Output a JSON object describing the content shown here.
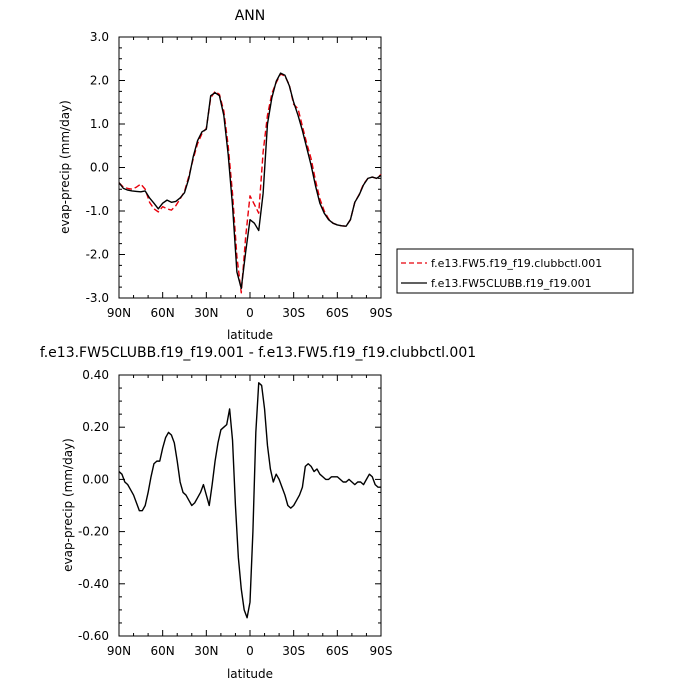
{
  "chart_data": [
    {
      "type": "line",
      "title": "ANN",
      "xlabel": "latitude",
      "ylabel": "evap-precip (mm/day)",
      "xlim": [
        -90,
        90
      ],
      "ylim": [
        -3.0,
        3.0
      ],
      "xticks": [
        -90,
        -60,
        -30,
        0,
        30,
        60,
        90
      ],
      "xtick_labels": [
        "90N",
        "60N",
        "30N",
        "0",
        "30S",
        "60S",
        "90S"
      ],
      "yticks": [
        -3.0,
        -2.0,
        -1.0,
        0.0,
        1.0,
        2.0,
        3.0
      ],
      "ytick_labels": [
        "-3.0",
        "-2.0",
        "-1.0",
        "0.0",
        "1.0",
        "2.0",
        "3.0"
      ],
      "legend_position": "right",
      "series": [
        {
          "name": "f.e13.FW5.f19_f19.clubbctl.001",
          "color": "#e8000b",
          "dash": "dashed",
          "x": [
            -90,
            -87,
            -84,
            -81,
            -78,
            -75,
            -72,
            -69,
            -66,
            -63,
            -60,
            -57,
            -54,
            -51,
            -48,
            -45,
            -42,
            -39,
            -36,
            -33,
            -30,
            -27,
            -24,
            -21,
            -18,
            -15,
            -12,
            -9,
            -6,
            -3,
            0,
            3,
            6,
            9,
            12,
            15,
            18,
            21,
            24,
            27,
            30,
            33,
            36,
            39,
            42,
            45,
            48,
            51,
            54,
            57,
            60,
            63,
            66,
            69,
            72,
            75,
            78,
            81,
            84,
            87,
            90
          ],
          "y": [
            -0.35,
            -0.45,
            -0.48,
            -0.5,
            -0.45,
            -0.38,
            -0.5,
            -0.8,
            -0.95,
            -1.02,
            -0.9,
            -0.95,
            -0.98,
            -0.88,
            -0.72,
            -0.55,
            -0.2,
            0.2,
            0.55,
            0.78,
            0.9,
            1.6,
            1.75,
            1.68,
            1.3,
            0.5,
            -0.6,
            -2.05,
            -2.88,
            -1.6,
            -0.65,
            -0.85,
            -1.05,
            0.35,
            1.2,
            1.7,
            1.95,
            2.15,
            2.1,
            1.9,
            1.45,
            1.35,
            0.95,
            0.55,
            0.2,
            -0.3,
            -0.72,
            -1.0,
            -1.18,
            -1.28,
            -1.32,
            -1.34,
            -1.35,
            -1.2,
            -0.8,
            -0.62,
            -0.38,
            -0.25,
            -0.22,
            -0.25,
            -0.16
          ]
        },
        {
          "name": "f.e13.FW5CLUBB.f19_f19.001",
          "color": "#000000",
          "dash": "solid",
          "x": [
            -90,
            -87,
            -84,
            -81,
            -78,
            -75,
            -72,
            -69,
            -66,
            -63,
            -60,
            -57,
            -54,
            -51,
            -48,
            -45,
            -42,
            -39,
            -36,
            -33,
            -30,
            -27,
            -24,
            -21,
            -18,
            -15,
            -12,
            -9,
            -6,
            -3,
            0,
            3,
            6,
            9,
            12,
            15,
            18,
            21,
            24,
            27,
            30,
            33,
            36,
            39,
            42,
            45,
            48,
            51,
            54,
            57,
            60,
            63,
            66,
            69,
            72,
            75,
            78,
            81,
            84,
            87,
            90
          ],
          "y": [
            -0.35,
            -0.48,
            -0.52,
            -0.54,
            -0.55,
            -0.56,
            -0.54,
            -0.7,
            -0.82,
            -0.95,
            -0.82,
            -0.75,
            -0.8,
            -0.78,
            -0.7,
            -0.58,
            -0.25,
            0.25,
            0.62,
            0.82,
            0.88,
            1.65,
            1.72,
            1.65,
            1.2,
            0.3,
            -0.88,
            -2.4,
            -2.78,
            -1.95,
            -1.2,
            -1.28,
            -1.45,
            -0.6,
            1.0,
            1.6,
            1.98,
            2.17,
            2.12,
            1.88,
            1.5,
            1.2,
            0.85,
            0.45,
            0.05,
            -0.42,
            -0.82,
            -1.05,
            -1.2,
            -1.28,
            -1.32,
            -1.34,
            -1.35,
            -1.2,
            -0.8,
            -0.63,
            -0.4,
            -0.25,
            -0.22,
            -0.25,
            -0.18
          ]
        }
      ]
    },
    {
      "type": "line",
      "title": "f.e13.FW5CLUBB.f19_f19.001 - f.e13.FW5.f19_f19.clubbctl.001",
      "xlabel": "latitude",
      "ylabel": "evap-precip (mm/day)",
      "xlim": [
        -90,
        90
      ],
      "ylim": [
        -0.6,
        0.4
      ],
      "xticks": [
        -90,
        -60,
        -30,
        0,
        30,
        60,
        90
      ],
      "xtick_labels": [
        "90N",
        "60N",
        "30N",
        "0",
        "30S",
        "60S",
        "90S"
      ],
      "yticks": [
        -0.6,
        -0.4,
        -0.2,
        0.0,
        0.2,
        0.4
      ],
      "ytick_labels": [
        "-0.60",
        "-0.40",
        "-0.20",
        "0.00",
        "0.20",
        "0.40"
      ],
      "series": [
        {
          "color": "#000000",
          "dash": "solid",
          "x": [
            -90,
            -88,
            -86,
            -84,
            -82,
            -80,
            -78,
            -76,
            -74,
            -72,
            -70,
            -68,
            -66,
            -64,
            -62,
            -60,
            -58,
            -56,
            -54,
            -52,
            -50,
            -48,
            -46,
            -44,
            -42,
            -40,
            -38,
            -36,
            -34,
            -32,
            -30,
            -28,
            -26,
            -24,
            -22,
            -20,
            -18,
            -16,
            -14,
            -12,
            -10,
            -8,
            -6,
            -4,
            -2,
            0,
            2,
            4,
            6,
            8,
            10,
            12,
            14,
            16,
            18,
            20,
            22,
            24,
            26,
            28,
            30,
            32,
            34,
            36,
            38,
            40,
            42,
            44,
            46,
            48,
            50,
            52,
            54,
            56,
            58,
            60,
            62,
            64,
            66,
            68,
            70,
            72,
            74,
            76,
            78,
            80,
            82,
            84,
            86,
            88,
            90
          ],
          "y": [
            0.03,
            0.02,
            -0.01,
            -0.02,
            -0.04,
            -0.06,
            -0.09,
            -0.12,
            -0.12,
            -0.1,
            -0.05,
            0.01,
            0.06,
            0.07,
            0.07,
            0.12,
            0.16,
            0.18,
            0.17,
            0.14,
            0.07,
            -0.01,
            -0.05,
            -0.06,
            -0.08,
            -0.1,
            -0.09,
            -0.07,
            -0.05,
            -0.02,
            -0.06,
            -0.1,
            -0.02,
            0.07,
            0.14,
            0.19,
            0.2,
            0.21,
            0.27,
            0.15,
            -0.1,
            -0.3,
            -0.42,
            -0.5,
            -0.53,
            -0.47,
            -0.2,
            0.18,
            0.37,
            0.36,
            0.27,
            0.13,
            0.04,
            -0.01,
            0.02,
            0.0,
            -0.03,
            -0.06,
            -0.1,
            -0.11,
            -0.1,
            -0.08,
            -0.06,
            -0.03,
            0.05,
            0.06,
            0.05,
            0.03,
            0.04,
            0.02,
            0.01,
            0.0,
            0.0,
            0.01,
            0.01,
            0.01,
            0.0,
            -0.01,
            -0.01,
            0.0,
            -0.01,
            -0.02,
            -0.01,
            -0.01,
            -0.02,
            0.0,
            0.02,
            0.01,
            -0.02,
            -0.03,
            -0.03
          ]
        }
      ]
    }
  ]
}
